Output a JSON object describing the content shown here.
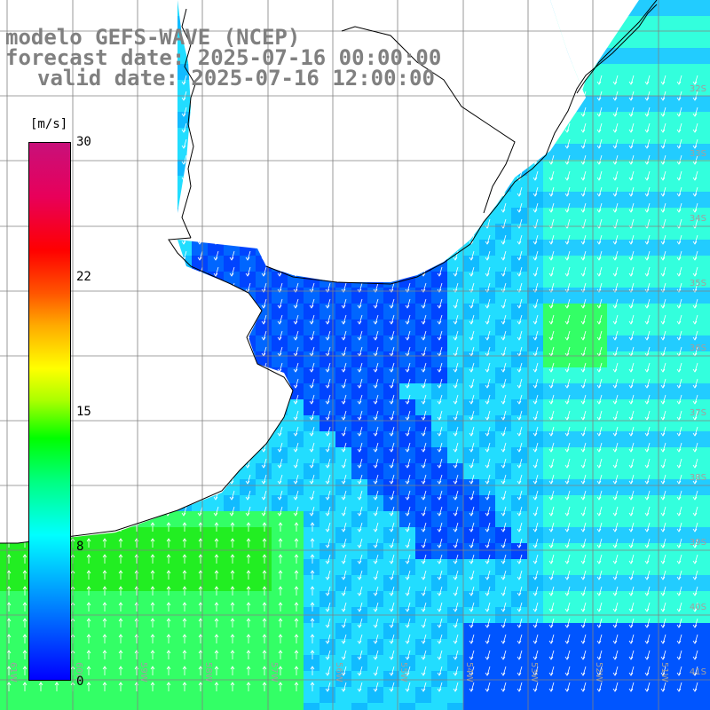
{
  "title": {
    "line1": "modelo GEFS-WAVE (NCEP)",
    "line2": "forecast date: 2025-07-16 00:00:00",
    "line3": "valid date: 2025-07-16 12:00:00"
  },
  "colorbar": {
    "unit": "[m/s]",
    "ticks": [
      {
        "label": "30",
        "value": 30
      },
      {
        "label": "22",
        "value": 22
      },
      {
        "label": "15",
        "value": 15
      },
      {
        "label": "8",
        "value": 8
      },
      {
        "label": "0",
        "value": 0
      }
    ]
  },
  "lat_labels": [
    "32S",
    "33S",
    "34S",
    "35S",
    "36S",
    "37S",
    "38S",
    "39S",
    "40S",
    "41S"
  ],
  "lon_labels": [
    "61W",
    "60W",
    "59W",
    "58W",
    "57W",
    "56W",
    "55W",
    "54W",
    "53W",
    "52W",
    "51W"
  ],
  "colors": {
    "calm": "#0000ff",
    "moderate": "#00ffff",
    "strong": "#00ff00",
    "land": "#ffffff",
    "grid": "#808080",
    "arrow": "#ffffff"
  }
}
